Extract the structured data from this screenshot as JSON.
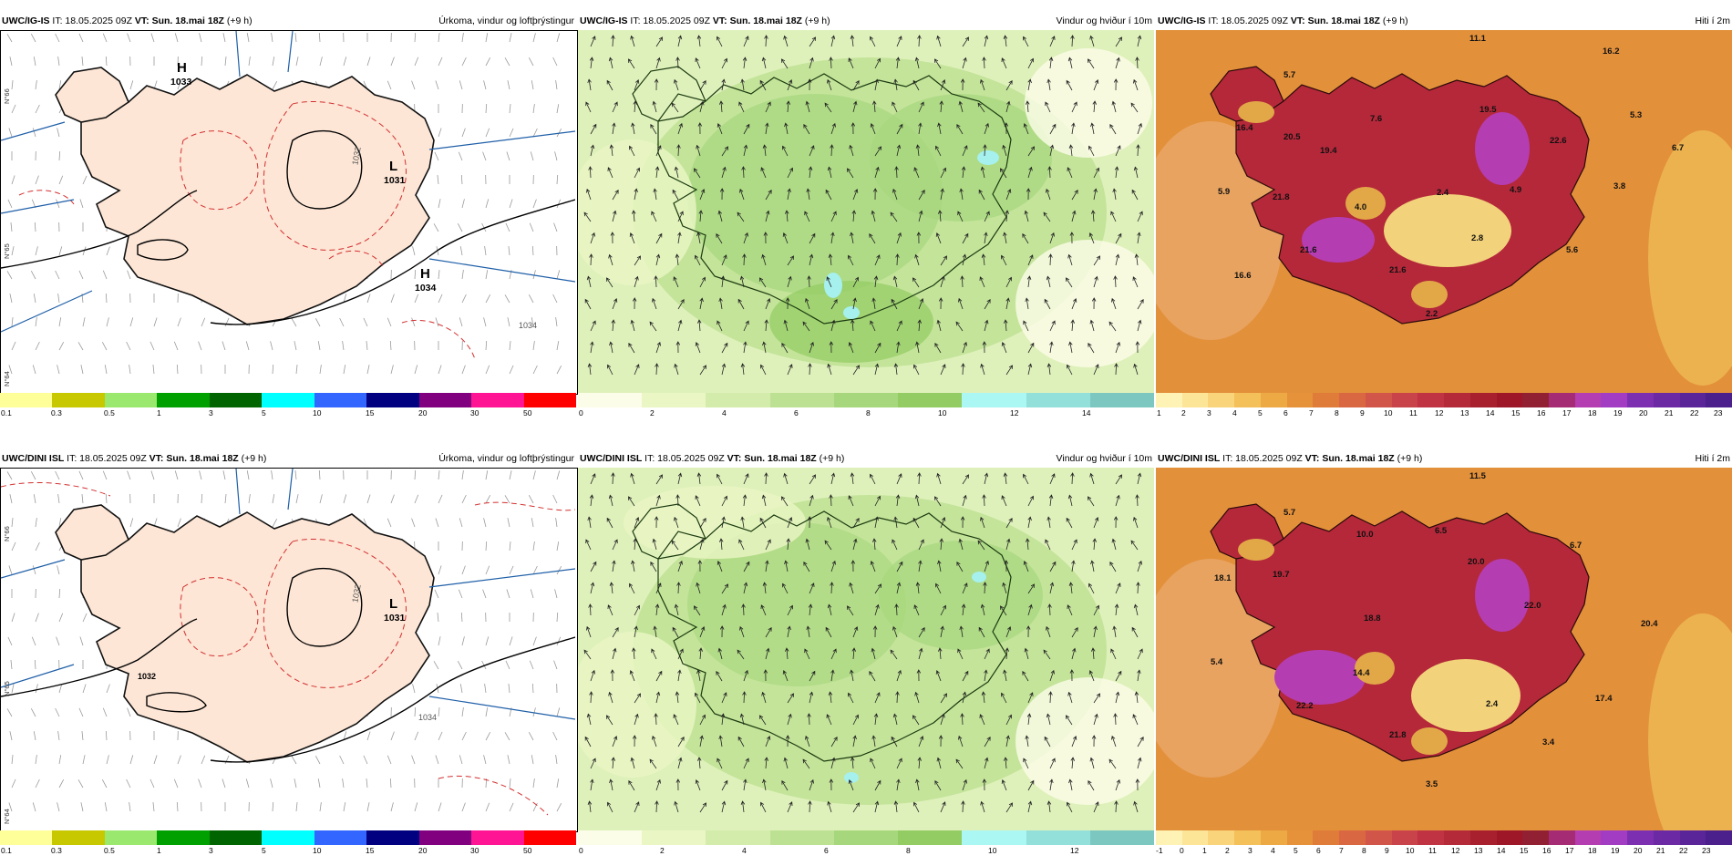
{
  "colors": {
    "precip_scale": [
      "#ffff99",
      "#c8c800",
      "#9be86f",
      "#00a000",
      "#006400",
      "#00ffff",
      "#3366ff",
      "#000080",
      "#800080",
      "#ff1493",
      "#ff0000"
    ],
    "wind_scale": [
      "#fcfde8",
      "#eaf6c4",
      "#d4ecab",
      "#bde192",
      "#a7d77d",
      "#93cc63",
      "#abf7f3",
      "#93e0da",
      "#7cc8c1"
    ],
    "temp_scale": [
      "#fef3b5",
      "#fde598",
      "#f9d47a",
      "#f4c05a",
      "#eca944",
      "#e6923a",
      "#e07c39",
      "#d96742",
      "#d2554a",
      "#c9434a",
      "#bf3343",
      "#b42a38",
      "#a8202d",
      "#9d1729",
      "#922033",
      "#a52c74",
      "#b53db2",
      "#a23cc3",
      "#7d2fb2",
      "#6b2aa4",
      "#5a2598",
      "#4b1f8c"
    ],
    "iceland_precip": "#fde6d6",
    "ocean_precip": "#ffffff",
    "ocean_wind": "#eef8cf"
  },
  "rows": [
    {
      "model": "UWC/IG-IS",
      "panels": [
        {
          "kind": "precip",
          "it_prefix": "IT: 18.05.2025 09Z",
          "vt_label": "VT: Sun. 18.mai 18Z",
          "lead": "(+9 h)",
          "title": "Úrkoma, vindur og loftþrýstingur",
          "ticks": [
            "0.1",
            "0.3",
            "0.5",
            "1",
            "3",
            "5",
            "10",
            "15",
            "20",
            "30",
            "50"
          ],
          "labels": {
            "h1": "H",
            "h1v": "1033",
            "l1": "L",
            "l1v": "1031",
            "h2": "H",
            "h2v": "1034",
            "iso_a": "1032",
            "iso_b": "1034"
          },
          "lat_labels": [
            "N°66",
            "N°65",
            "N°64"
          ]
        },
        {
          "kind": "wind",
          "it_prefix": "IT: 18.05.2025 09Z",
          "vt_label": "VT: Sun. 18.mai 18Z",
          "lead": "(+9 h)",
          "title": "Vindur og hviður í 10m",
          "ticks": [
            "0",
            "2",
            "4",
            "6",
            "8",
            "10",
            "12",
            "14"
          ]
        },
        {
          "kind": "temp",
          "it_prefix": "IT: 18.05.2025 09Z",
          "vt_label": "VT: Sun. 18.mai 18Z",
          "lead": "(+9 h)",
          "title": "Hiti í 2m",
          "ticks": [
            "1",
            "2",
            "3",
            "4",
            "5",
            "6",
            "7",
            "8",
            "9",
            "10",
            "11",
            "12",
            "13",
            "14",
            "15",
            "16",
            "17",
            "18",
            "19",
            "20",
            "21",
            "22",
            "23"
          ],
          "values": [
            "11.1",
            "16.2",
            "5.7",
            "16.4",
            "20.5",
            "19.4",
            "7.6",
            "19.5",
            "22.6",
            "5.3",
            "6.7",
            "5.9",
            "21.8",
            "4.0",
            "2.4",
            "4.9",
            "3.8",
            "21.6",
            "2.8",
            "21.6",
            "5.6",
            "16.6",
            "2.2"
          ]
        }
      ]
    },
    {
      "model": "UWC/DINI ISL",
      "panels": [
        {
          "kind": "precip",
          "it_prefix": "IT: 18.05.2025 09Z",
          "vt_label": "VT: Sun. 18.mai 18Z",
          "lead": "(+9 h)",
          "title": "Úrkoma, vindur og loftþrýstingur",
          "ticks": [
            "0.1",
            "0.3",
            "0.5",
            "1",
            "3",
            "5",
            "10",
            "15",
            "20",
            "30",
            "50"
          ],
          "labels": {
            "l1": "L",
            "l1v": "1031",
            "iso_a": "1032",
            "iso_b": "1034",
            "iso_c": "1032"
          },
          "lat_labels": [
            "N°66",
            "N°65",
            "N°64"
          ]
        },
        {
          "kind": "wind",
          "it_prefix": "IT: 18.05.2025 09Z",
          "vt_label": "VT: Sun. 18.mai 18Z",
          "lead": "(+9 h)",
          "title": "Vindur og hviður í 10m",
          "ticks": [
            "0",
            "2",
            "4",
            "6",
            "8",
            "10",
            "12"
          ]
        },
        {
          "kind": "temp",
          "it_prefix": "IT: 18.05.2025 09Z",
          "vt_label": "VT: Sun. 18.mai 18Z",
          "lead": "(+9 h)",
          "title": "Hiti í 2m",
          "ticks": [
            "-1",
            "0",
            "1",
            "2",
            "3",
            "4",
            "5",
            "6",
            "7",
            "8",
            "9",
            "10",
            "11",
            "12",
            "13",
            "14",
            "15",
            "16",
            "17",
            "18",
            "19",
            "20",
            "21",
            "22",
            "23"
          ],
          "values": [
            "11.5",
            "5.7",
            "10.0",
            "6.5",
            "6.7",
            "18.1",
            "19.7",
            "20.0",
            "22.0",
            "20.4",
            "5.4",
            "18.8",
            "14.4",
            "22.2",
            "2.4",
            "17.4",
            "21.8",
            "3.4",
            "3.5"
          ]
        }
      ]
    }
  ]
}
